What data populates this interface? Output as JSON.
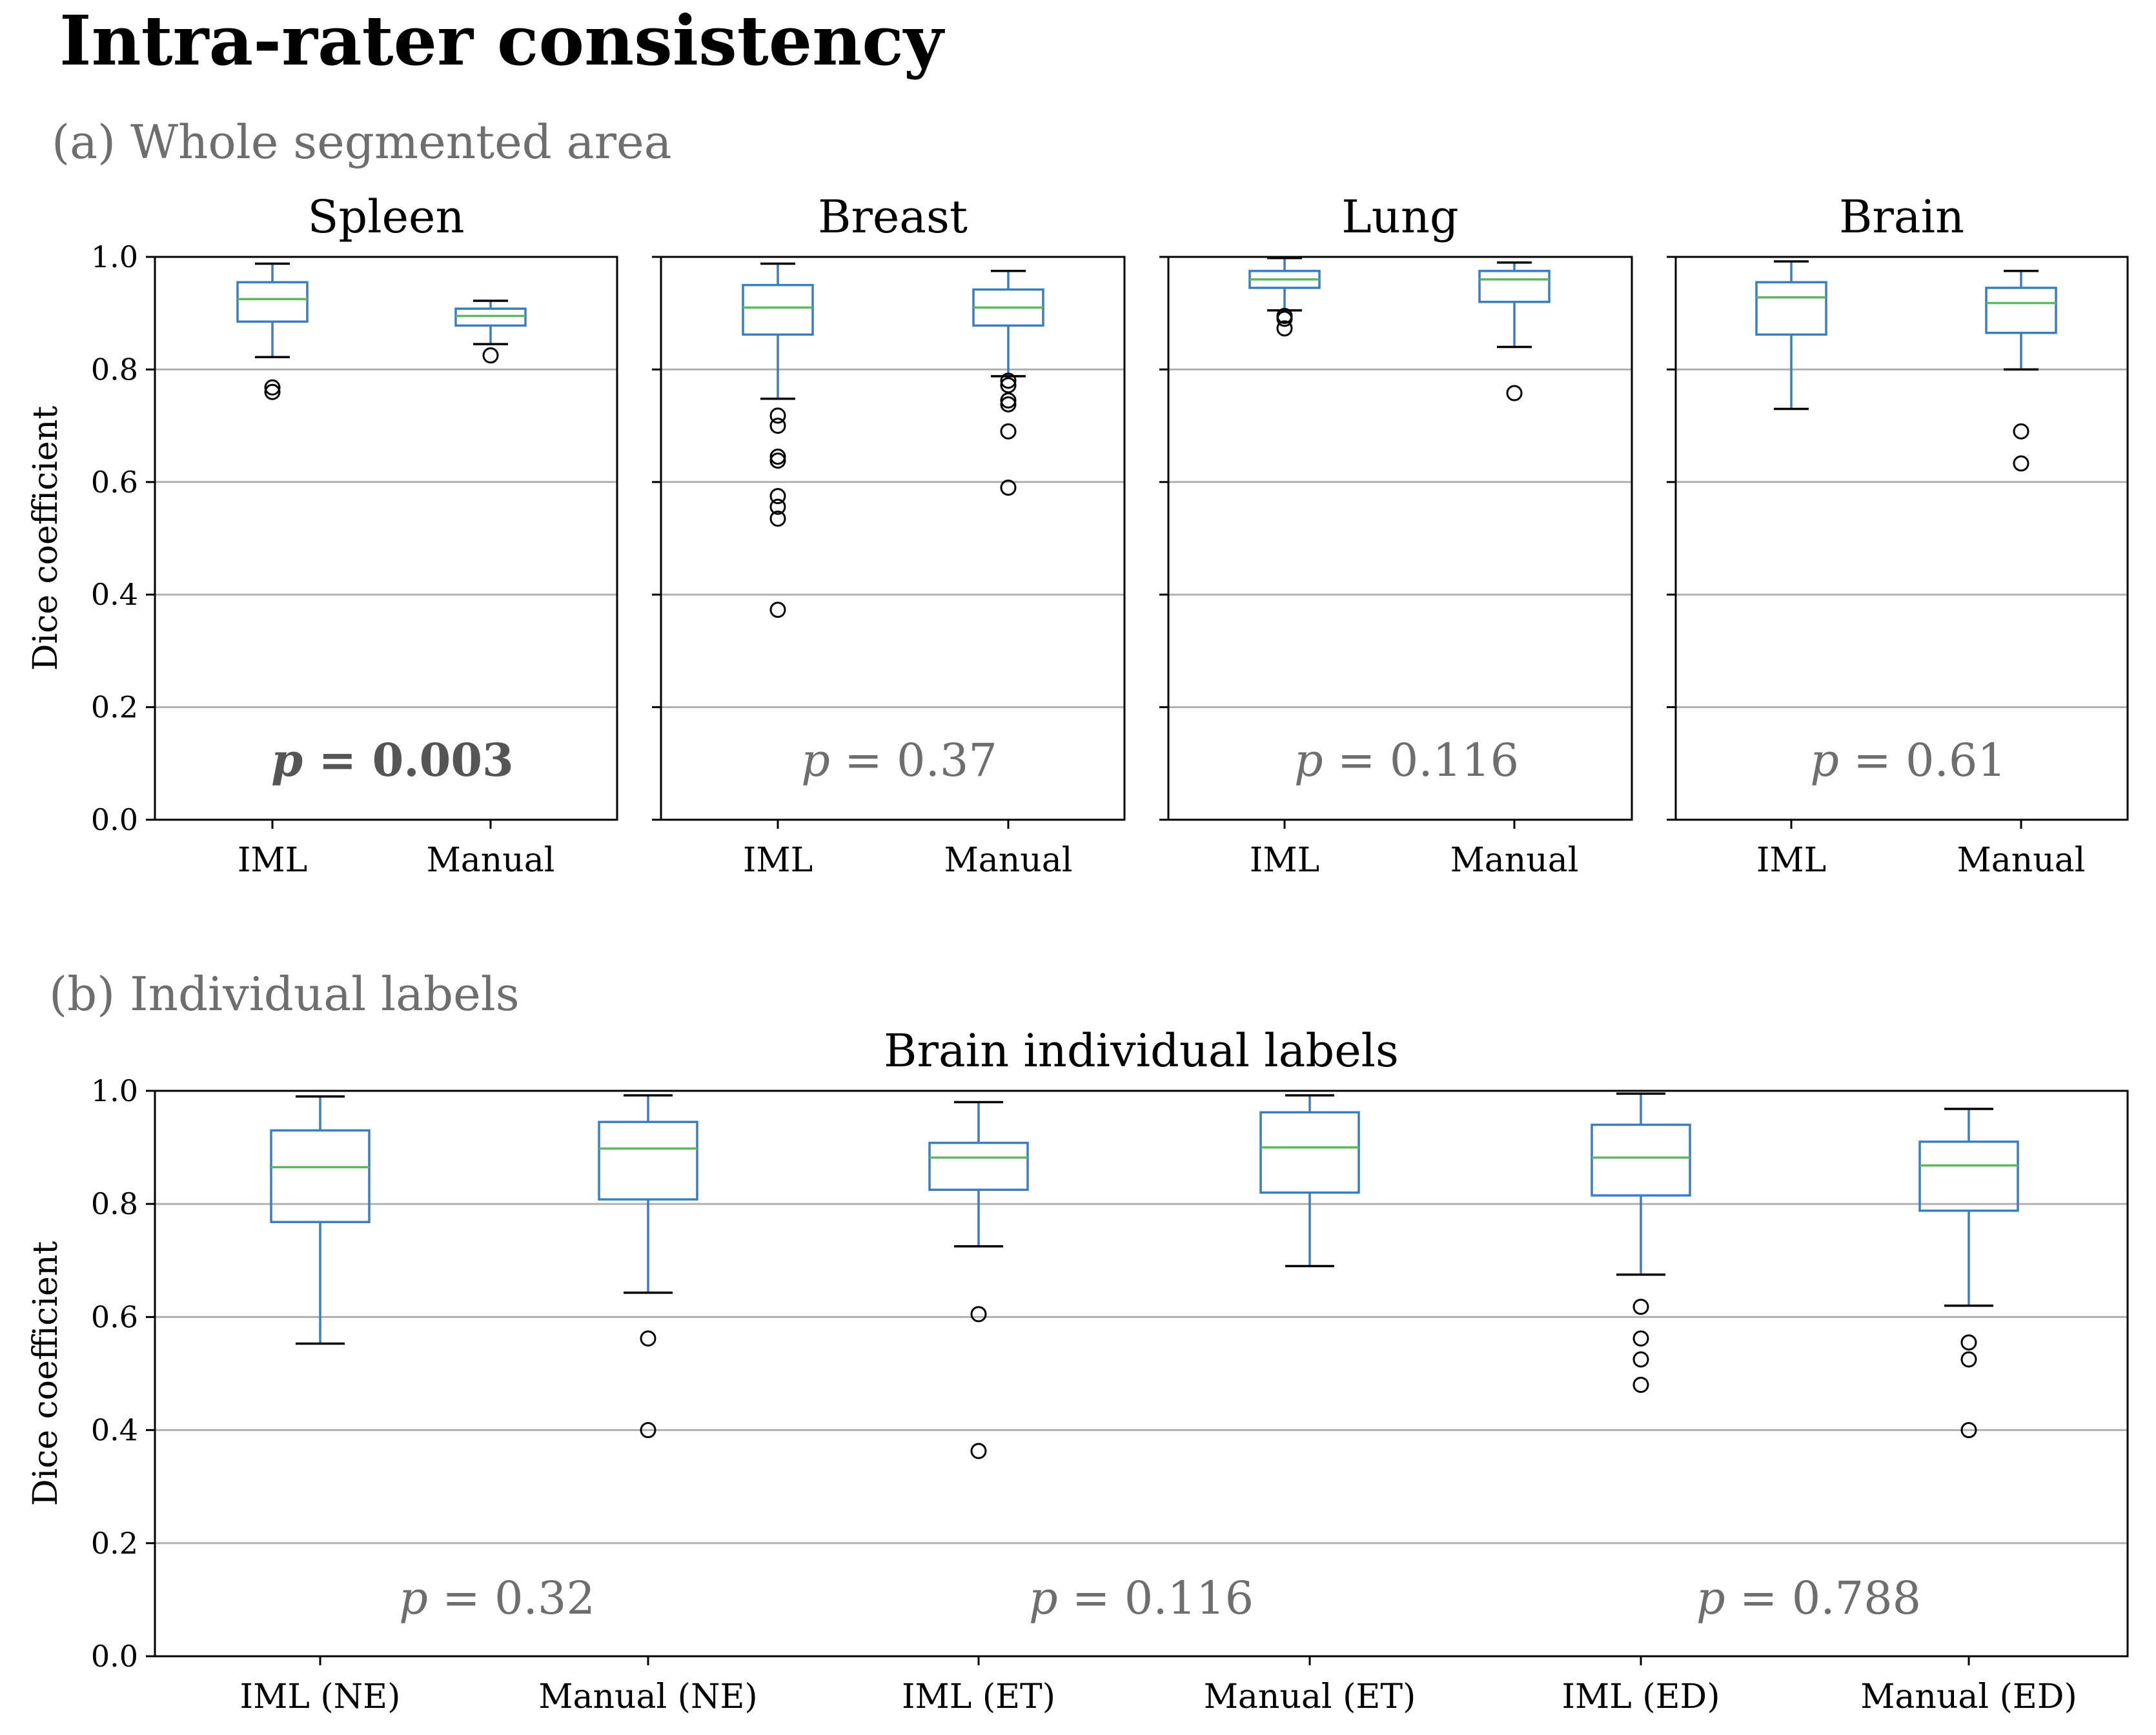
{
  "figure": {
    "title": "Intra-rater consistency",
    "section_a_label": "(a) Whole segmented area",
    "section_b_label": "(b) Individual labels"
  },
  "colors": {
    "box": "#3a7ebf",
    "median": "#5cb85c",
    "grid": "#b0b0b0",
    "text": "#000000",
    "label_gray": "#6e6e6e"
  },
  "chart_data": [
    {
      "type": "box",
      "title": "Spleen",
      "ylabel": "Dice coefficient",
      "ylim": [
        0,
        1.0
      ],
      "yticks": [
        "0.0",
        "0.2",
        "0.4",
        "0.6",
        "0.8",
        "1.0"
      ],
      "grid": true,
      "categories": [
        "IML",
        "Manual"
      ],
      "boxes": [
        {
          "whislo": 0.822,
          "q1": 0.885,
          "med": 0.925,
          "q3": 0.955,
          "whishi": 0.988,
          "fliers": [
            0.768,
            0.76
          ]
        },
        {
          "whislo": 0.845,
          "q1": 0.878,
          "med": 0.895,
          "q3": 0.908,
          "whishi": 0.922,
          "fliers": [
            0.825
          ]
        }
      ],
      "annotation": {
        "prefix": "p",
        "text": " = 0.003",
        "bold": true
      }
    },
    {
      "type": "box",
      "title": "Breast",
      "ylim": [
        0,
        1.0
      ],
      "yticks": [
        "0.0",
        "0.2",
        "0.4",
        "0.6",
        "0.8",
        "1.0"
      ],
      "grid": true,
      "categories": [
        "IML",
        "Manual"
      ],
      "boxes": [
        {
          "whislo": 0.748,
          "q1": 0.862,
          "med": 0.91,
          "q3": 0.95,
          "whishi": 0.988,
          "fliers": [
            0.718,
            0.7,
            0.645,
            0.638,
            0.575,
            0.556,
            0.535,
            0.373
          ]
        },
        {
          "whislo": 0.788,
          "q1": 0.878,
          "med": 0.91,
          "q3": 0.942,
          "whishi": 0.975,
          "fliers": [
            0.78,
            0.772,
            0.745,
            0.738,
            0.69,
            0.59
          ]
        }
      ],
      "annotation": {
        "prefix": "p",
        "text": " = 0.37",
        "bold": false
      }
    },
    {
      "type": "box",
      "title": "Lung",
      "ylim": [
        0,
        1.0
      ],
      "yticks": [
        "0.0",
        "0.2",
        "0.4",
        "0.6",
        "0.8",
        "1.0"
      ],
      "grid": true,
      "categories": [
        "IML",
        "Manual"
      ],
      "boxes": [
        {
          "whislo": 0.905,
          "q1": 0.945,
          "med": 0.96,
          "q3": 0.975,
          "whishi": 0.998,
          "fliers": [
            0.895,
            0.89,
            0.873
          ]
        },
        {
          "whislo": 0.84,
          "q1": 0.92,
          "med": 0.96,
          "q3": 0.975,
          "whishi": 0.99,
          "fliers": [
            0.758
          ]
        }
      ],
      "annotation": {
        "prefix": "p",
        "text": " = 0.116",
        "bold": false
      }
    },
    {
      "type": "box",
      "title": "Brain",
      "ylim": [
        0,
        1.0
      ],
      "yticks": [
        "0.0",
        "0.2",
        "0.4",
        "0.6",
        "0.8",
        "1.0"
      ],
      "grid": true,
      "categories": [
        "IML",
        "Manual"
      ],
      "boxes": [
        {
          "whislo": 0.73,
          "q1": 0.862,
          "med": 0.928,
          "q3": 0.955,
          "whishi": 0.992,
          "fliers": []
        },
        {
          "whislo": 0.8,
          "q1": 0.865,
          "med": 0.918,
          "q3": 0.945,
          "whishi": 0.975,
          "fliers": [
            0.69,
            0.633
          ]
        }
      ],
      "annotation": {
        "prefix": "p",
        "text": " = 0.61",
        "bold": false
      }
    },
    {
      "type": "box",
      "title": "Brain individual labels",
      "ylabel": "Dice coefficient",
      "ylim": [
        0,
        1.0
      ],
      "yticks": [
        "0.0",
        "0.2",
        "0.4",
        "0.6",
        "0.8",
        "1.0"
      ],
      "grid": true,
      "categories": [
        "IML (NE)",
        "Manual (NE)",
        "IML (ET)",
        "Manual (ET)",
        "IML (ED)",
        "Manual (ED)"
      ],
      "boxes": [
        {
          "whislo": 0.553,
          "q1": 0.768,
          "med": 0.865,
          "q3": 0.93,
          "whishi": 0.99,
          "fliers": []
        },
        {
          "whislo": 0.643,
          "q1": 0.808,
          "med": 0.898,
          "q3": 0.945,
          "whishi": 0.992,
          "fliers": [
            0.562,
            0.4
          ]
        },
        {
          "whislo": 0.725,
          "q1": 0.825,
          "med": 0.882,
          "q3": 0.908,
          "whishi": 0.98,
          "fliers": [
            0.605,
            0.363
          ]
        },
        {
          "whislo": 0.69,
          "q1": 0.82,
          "med": 0.9,
          "q3": 0.962,
          "whishi": 0.992,
          "fliers": []
        },
        {
          "whislo": 0.675,
          "q1": 0.815,
          "med": 0.882,
          "q3": 0.94,
          "whishi": 0.995,
          "fliers": [
            0.618,
            0.562,
            0.525,
            0.48
          ]
        },
        {
          "whislo": 0.62,
          "q1": 0.788,
          "med": 0.868,
          "q3": 0.91,
          "whishi": 0.968,
          "fliers": [
            0.555,
            0.525,
            0.4
          ]
        }
      ],
      "annotations": [
        {
          "prefix": "p",
          "text": " = 0.32"
        },
        {
          "prefix": "p",
          "text": " = 0.116"
        },
        {
          "prefix": "p",
          "text": " = 0.788"
        }
      ]
    }
  ]
}
